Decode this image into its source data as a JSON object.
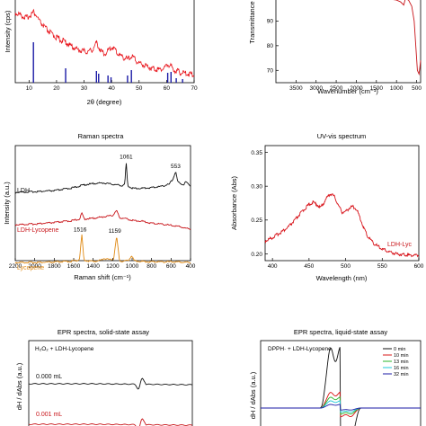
{
  "chart_data": [
    {
      "id": "xrd",
      "type": "line",
      "title": "",
      "xlabel": "2θ (degree)",
      "ylabel": "Intensity (cps)",
      "xlim": [
        5,
        70
      ],
      "xticks": [
        10,
        20,
        30,
        40,
        50,
        60,
        70
      ],
      "reversed_x": false,
      "curve_color": "#e8141b",
      "stick_color": "#1a1aa6",
      "curve": {
        "x": [
          5,
          7,
          9,
          10,
          11,
          11.6,
          12.5,
          14,
          16,
          18,
          20,
          22,
          23.2,
          25,
          28,
          31,
          33,
          34.6,
          36,
          37.5,
          39,
          40.5,
          42,
          44,
          46,
          47.5,
          49,
          51,
          53,
          55,
          57,
          59,
          60.5,
          61.5,
          63,
          65,
          67,
          70
        ],
        "y": [
          98,
          96,
          93,
          95,
          97,
          99,
          96,
          89,
          83,
          78,
          74,
          71,
          70,
          66,
          62,
          60,
          62,
          69,
          61,
          58,
          62,
          65,
          59,
          55,
          53,
          56,
          51,
          48,
          46,
          44,
          43,
          44,
          48,
          46,
          42,
          40,
          39,
          38
        ]
      },
      "sticks": {
        "x": [
          11.6,
          23.3,
          34.5,
          35.3,
          38.7,
          39.8,
          45.8,
          47.2,
          60.4,
          61.6,
          63.5,
          65.8
        ],
        "h": [
          45,
          16,
          13,
          10,
          8,
          6,
          8,
          14,
          11,
          12,
          5,
          4
        ]
      }
    },
    {
      "id": "ftir",
      "type": "line",
      "title": "",
      "xlabel": "Wavenumber (cm⁻¹)",
      "ylabel": "Transmittance",
      "xlim": [
        4000,
        400
      ],
      "ylim": [
        65,
        100
      ],
      "xticks": [
        3500,
        3000,
        2500,
        2000,
        1500,
        1000,
        500
      ],
      "yticks": [
        70,
        80,
        90
      ],
      "reversed_x": true,
      "curve_color": "#c81419",
      "curve": {
        "x": [
          4000,
          3500,
          3000,
          2500,
          2000,
          1700,
          1500,
          1200,
          1000,
          900,
          820,
          780,
          700,
          620,
          560,
          520,
          480,
          440,
          420,
          400
        ],
        "y": [
          99.5,
          99.5,
          99.4,
          99.4,
          99.4,
          99.3,
          99.2,
          99,
          98.5,
          97.8,
          96.5,
          99.0,
          98.5,
          96,
          90,
          80,
          70,
          68.5,
          71,
          74
        ]
      }
    },
    {
      "id": "raman",
      "type": "line",
      "title": "Raman spectra",
      "xlabel": "Raman shift (cm⁻¹)",
      "ylabel": "Intensity (a.u.)",
      "xlim": [
        2200,
        400
      ],
      "xticks": [
        2200,
        2000,
        1800,
        1600,
        1400,
        1200,
        1000,
        800,
        600,
        400
      ],
      "reversed_x": true,
      "series": [
        {
          "name": "LDH",
          "color": "#111111",
          "x": [
            2200,
            2000,
            1800,
            1600,
            1500,
            1400,
            1300,
            1200,
            1100,
            1075,
            1061,
            1045,
            1000,
            900,
            800,
            700,
            620,
            580,
            553,
            530,
            470,
            450,
            420,
            400
          ],
          "y": [
            0,
            0.02,
            0.05,
            0.14,
            0.22,
            0.26,
            0.28,
            0.24,
            0.2,
            0.25,
            0.9,
            0.2,
            0.12,
            0.12,
            0.14,
            0.18,
            0.24,
            0.4,
            0.62,
            0.3,
            0.22,
            0.32,
            0.24,
            0.2
          ]
        },
        {
          "name": "LDH-Lycopene",
          "color": "#c81419",
          "x": [
            2200,
            2000,
            1800,
            1600,
            1540,
            1516,
            1490,
            1400,
            1300,
            1200,
            1159,
            1130,
            1050,
            1000,
            900,
            800,
            700,
            600,
            550,
            500,
            450,
            400
          ],
          "y": [
            0,
            0.02,
            0.06,
            0.12,
            0.16,
            0.32,
            0.16,
            0.18,
            0.22,
            0.26,
            0.4,
            0.2,
            0.16,
            0.12,
            0.1,
            0.04,
            0.02,
            -0.02,
            -0.04,
            -0.06,
            -0.1,
            -0.12
          ]
        },
        {
          "name": "Lycopene",
          "color": "#e08a14",
          "x": [
            2200,
            2000,
            1800,
            1650,
            1560,
            1540,
            1516,
            1495,
            1450,
            1350,
            1285,
            1230,
            1190,
            1159,
            1130,
            1100,
            1040,
            1005,
            980,
            950,
            850,
            700,
            600,
            500,
            400
          ],
          "y": [
            0,
            0,
            0.01,
            0.03,
            0.06,
            0.12,
            0.82,
            0.08,
            0.04,
            0.04,
            0.12,
            0.08,
            0.1,
            0.78,
            0.06,
            0.03,
            0.06,
            0.2,
            0.06,
            0.04,
            0.02,
            0.02,
            0.02,
            0.01,
            0
          ]
        }
      ],
      "annotations": [
        {
          "x": 1061,
          "label": "1061",
          "series": 0
        },
        {
          "x": 553,
          "label": "553",
          "series": 0
        },
        {
          "x": 1516,
          "label": "1516",
          "series": 2
        },
        {
          "x": 1159,
          "label": "1159",
          "series": 2
        }
      ]
    },
    {
      "id": "uvvis",
      "type": "line",
      "title": "UV-vis spectrum",
      "xlabel": "Wavelength (nm)",
      "ylabel": "Absorbance (Abs)",
      "xlim": [
        390,
        600
      ],
      "ylim": [
        0.19,
        0.36
      ],
      "xticks": [
        400,
        450,
        500,
        550,
        600
      ],
      "yticks": [
        0.2,
        0.25,
        0.3,
        0.35
      ],
      "reversed_x": false,
      "legend": "LDH-Lyc",
      "curve_color": "#d8141b",
      "curve": {
        "x": [
          390,
          400,
          410,
          420,
          430,
          440,
          450,
          455,
          460,
          465,
          470,
          476,
          480,
          485,
          490,
          495,
          500,
          505,
          510,
          515,
          520,
          525,
          530,
          540,
          550,
          560,
          570,
          580,
          590,
          600
        ],
        "y": [
          0.219,
          0.224,
          0.231,
          0.238,
          0.249,
          0.262,
          0.273,
          0.276,
          0.274,
          0.268,
          0.275,
          0.286,
          0.289,
          0.284,
          0.272,
          0.262,
          0.262,
          0.268,
          0.27,
          0.266,
          0.252,
          0.238,
          0.226,
          0.214,
          0.207,
          0.203,
          0.2,
          0.199,
          0.198,
          0.198
        ]
      }
    },
    {
      "id": "epr-solid",
      "type": "line",
      "title": "EPR spectra, solid-state assay",
      "ylabel": "dH / dAbs (a.u.)",
      "annotation": "H₂O₂ + LDH-Lycopene",
      "series": [
        {
          "name": "0.000 mL",
          "color": "#111111"
        },
        {
          "name": "0.001 mL",
          "color": "#c81419"
        }
      ]
    },
    {
      "id": "epr-liquid",
      "type": "line",
      "title": "EPR spectra, liquid-state assay",
      "ylabel": "dH / dAbs (a.u.)",
      "annotation": "DPPH· + LDH-Lycopene",
      "legend_position": "top-right",
      "series": [
        {
          "name": "0 min",
          "color": "#111111",
          "scale": 1.0
        },
        {
          "name": "10 min",
          "color": "#d81414",
          "scale": 0.26
        },
        {
          "name": "13 min",
          "color": "#28b428",
          "scale": 0.18
        },
        {
          "name": "16 min",
          "color": "#1ec8d8",
          "scale": 0.12
        },
        {
          "name": "32 min",
          "color": "#1a1aa6",
          "scale": 0.06
        }
      ]
    }
  ]
}
